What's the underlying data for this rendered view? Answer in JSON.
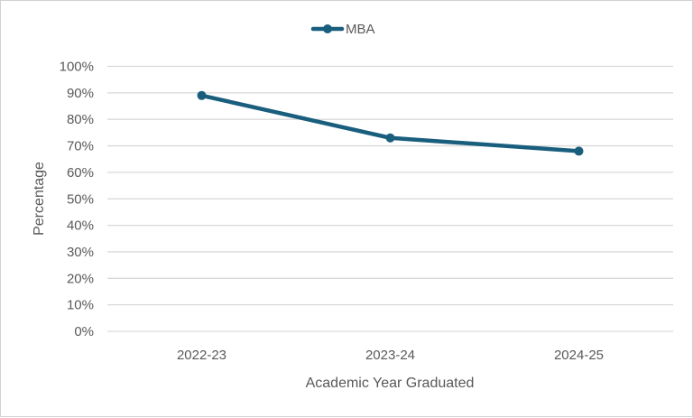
{
  "chart_data": {
    "type": "line",
    "title": "",
    "xlabel": "Academic Year Graduated",
    "ylabel": "Percentage",
    "categories": [
      "2022-23",
      "2023-24",
      "2024-25"
    ],
    "series": [
      {
        "name": "MBA",
        "values": [
          89,
          73,
          68
        ],
        "color": "#1a5e7e"
      }
    ],
    "ylim": [
      0,
      100
    ],
    "yticks": [
      0,
      10,
      20,
      30,
      40,
      50,
      60,
      70,
      80,
      90,
      100
    ],
    "ytick_format": "percent",
    "grid": true,
    "legend": "top-center",
    "markers": true
  }
}
